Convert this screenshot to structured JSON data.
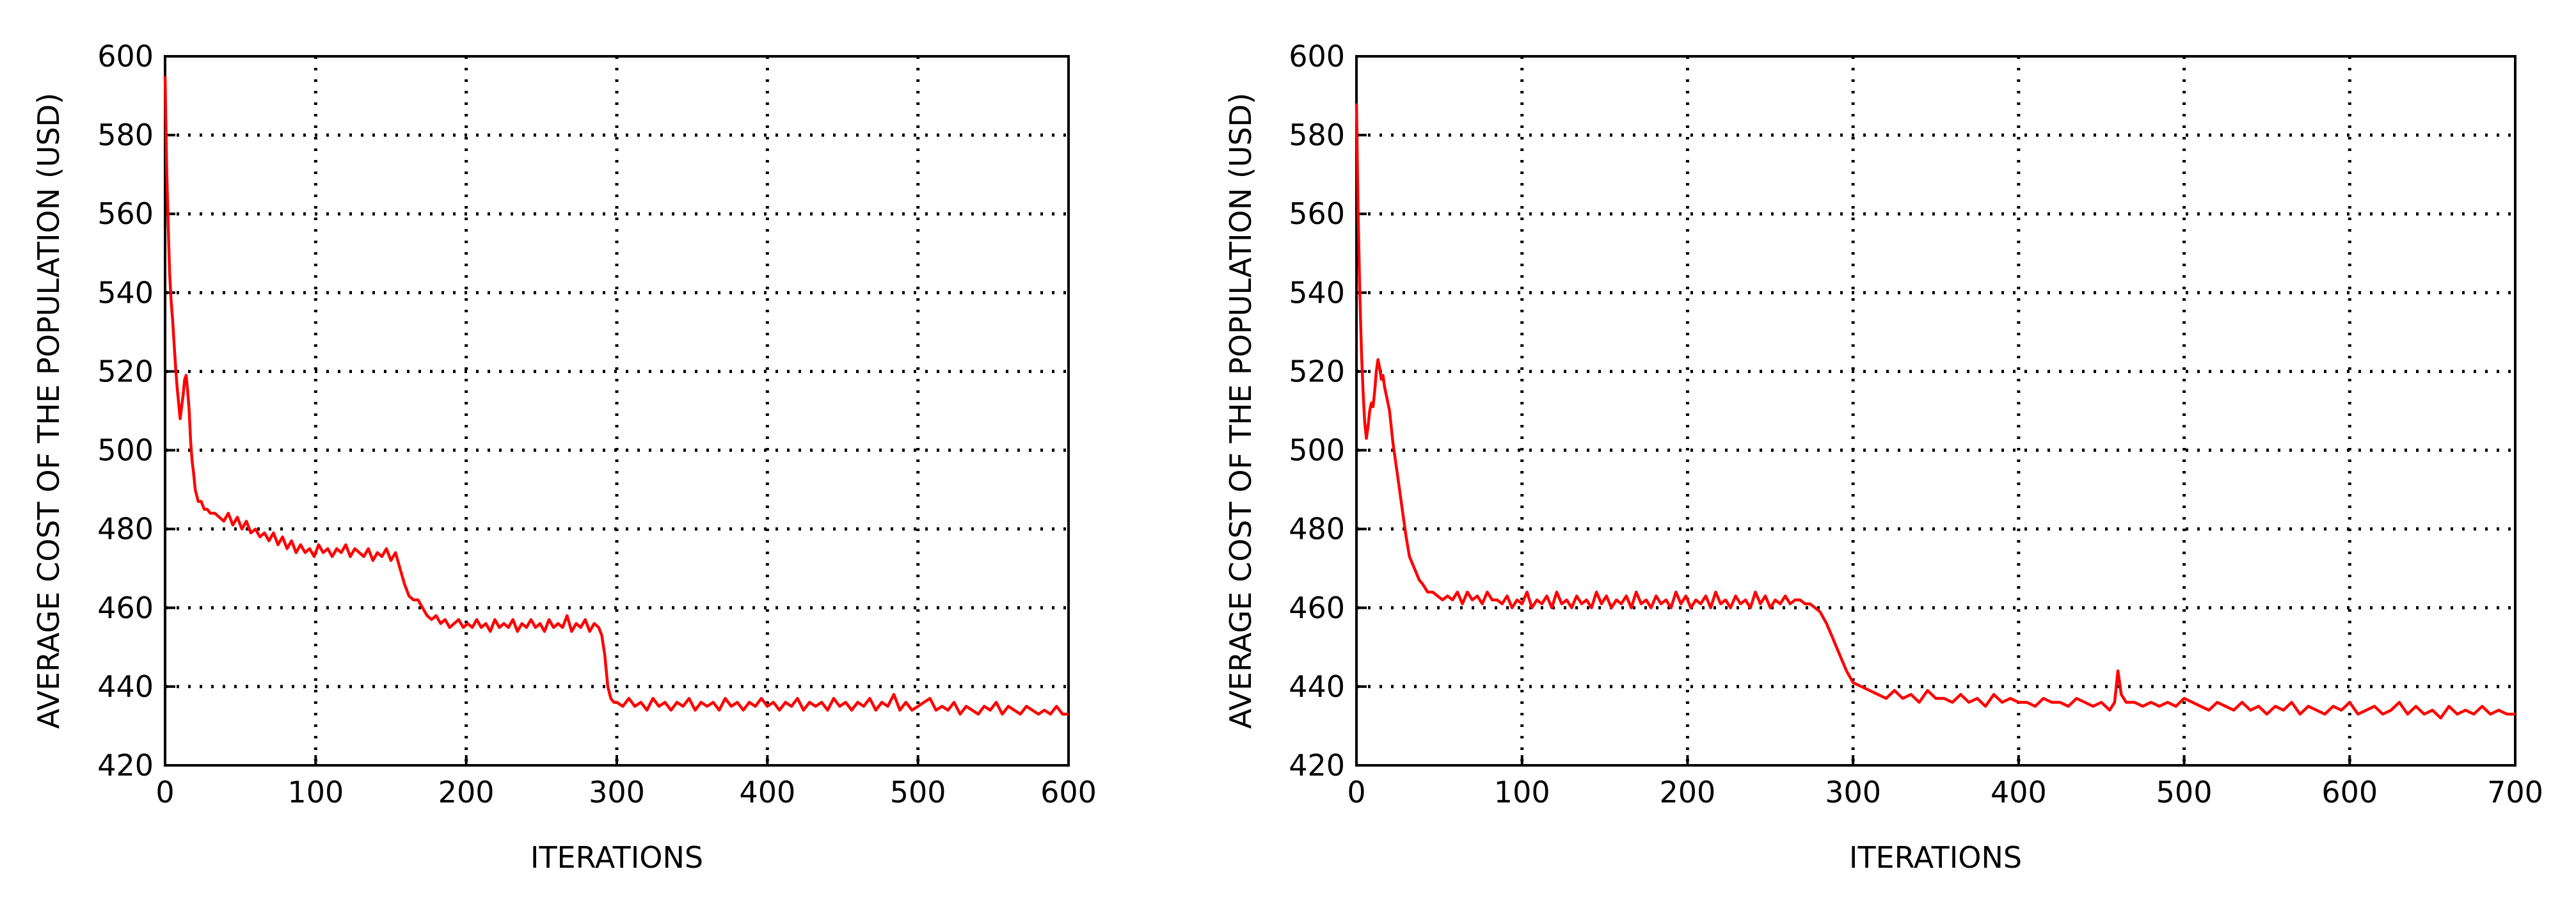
{
  "figure": {
    "background": "#ffffff"
  },
  "chart_data": [
    {
      "type": "line",
      "title": "",
      "xlabel": "ITERATIONS",
      "ylabel": "AVERAGE COST OF THE POPULATION (USD)",
      "xlim": [
        0,
        600
      ],
      "ylim": [
        420,
        600
      ],
      "xticks": [
        0,
        100,
        200,
        300,
        400,
        500,
        600
      ],
      "yticks": [
        420,
        440,
        460,
        480,
        500,
        520,
        540,
        560,
        580,
        600
      ],
      "grid": true,
      "grid_style": "dotted",
      "legend": "none",
      "series": [
        {
          "color": "#ff0000",
          "x": [
            0,
            1,
            2,
            3,
            4,
            5,
            6,
            7,
            8,
            9,
            10,
            11,
            12,
            13,
            14,
            15,
            16,
            17,
            18,
            19,
            20,
            22,
            24,
            26,
            28,
            30,
            33,
            36,
            39,
            42,
            45,
            48,
            51,
            54,
            57,
            60,
            63,
            66,
            69,
            72,
            75,
            78,
            81,
            84,
            87,
            90,
            93,
            96,
            99,
            102,
            105,
            108,
            111,
            114,
            117,
            120,
            123,
            126,
            129,
            132,
            135,
            138,
            141,
            144,
            147,
            150,
            153,
            156,
            159,
            162,
            165,
            168,
            171,
            174,
            177,
            180,
            183,
            186,
            189,
            192,
            195,
            198,
            201,
            204,
            207,
            210,
            213,
            216,
            219,
            222,
            225,
            228,
            231,
            234,
            237,
            240,
            243,
            246,
            249,
            252,
            255,
            258,
            261,
            264,
            267,
            270,
            273,
            276,
            279,
            282,
            285,
            288,
            290,
            292,
            294,
            296,
            298,
            300,
            304,
            308,
            312,
            316,
            320,
            324,
            328,
            332,
            336,
            340,
            344,
            348,
            352,
            356,
            360,
            364,
            368,
            372,
            376,
            380,
            384,
            388,
            392,
            396,
            400,
            404,
            408,
            412,
            416,
            420,
            424,
            428,
            432,
            436,
            440,
            444,
            448,
            452,
            456,
            460,
            464,
            468,
            472,
            476,
            480,
            484,
            488,
            492,
            496,
            500,
            504,
            508,
            512,
            516,
            520,
            524,
            528,
            532,
            536,
            540,
            544,
            548,
            552,
            556,
            560,
            564,
            568,
            572,
            576,
            580,
            584,
            588,
            592,
            596,
            600
          ],
          "y": [
            595,
            572,
            558,
            545,
            538,
            533,
            527,
            521,
            516,
            512,
            508,
            511,
            514,
            518,
            519,
            515,
            510,
            502,
            497,
            494,
            490,
            487,
            487,
            485,
            485,
            484,
            484,
            483,
            482,
            484,
            481,
            483,
            480,
            482,
            479,
            480,
            478,
            479,
            477,
            479,
            476,
            478,
            475,
            477,
            474,
            476,
            474,
            475,
            473,
            476,
            474,
            475,
            473,
            475,
            474,
            476,
            473,
            475,
            474,
            473,
            475,
            472,
            474,
            473,
            475,
            472,
            474,
            470,
            466,
            463,
            462,
            462,
            460,
            458,
            457,
            458,
            456,
            457,
            455,
            456,
            457,
            455,
            456,
            455,
            457,
            455,
            456,
            454,
            457,
            455,
            456,
            455,
            457,
            454,
            456,
            455,
            457,
            455,
            456,
            454,
            457,
            455,
            456,
            455,
            458,
            454,
            456,
            455,
            457,
            454,
            456,
            455,
            453,
            448,
            440,
            437,
            436,
            436,
            435,
            437,
            435,
            436,
            434,
            437,
            435,
            436,
            434,
            436,
            435,
            437,
            434,
            436,
            435,
            436,
            434,
            437,
            435,
            436,
            434,
            436,
            435,
            437,
            435,
            436,
            434,
            436,
            435,
            437,
            434,
            436,
            435,
            436,
            434,
            437,
            435,
            436,
            434,
            436,
            435,
            437,
            434,
            436,
            435,
            438,
            434,
            436,
            434,
            435,
            436,
            437,
            434,
            435,
            434,
            436,
            433,
            435,
            434,
            433,
            435,
            434,
            436,
            433,
            435,
            434,
            433,
            435,
            434,
            433,
            434,
            433,
            435,
            433,
            433
          ]
        }
      ]
    },
    {
      "type": "line",
      "title": "",
      "xlabel": "ITERATIONS",
      "ylabel": "AVERAGE COST OF THE POPULATION (USD)",
      "xlim": [
        0,
        700
      ],
      "ylim": [
        420,
        600
      ],
      "xticks": [
        0,
        100,
        200,
        300,
        400,
        500,
        600,
        700
      ],
      "yticks": [
        420,
        440,
        460,
        480,
        500,
        520,
        540,
        560,
        580,
        600
      ],
      "grid": true,
      "grid_style": "dotted",
      "legend": "none",
      "series": [
        {
          "color": "#ff0000",
          "x": [
            0,
            1,
            2,
            3,
            4,
            5,
            6,
            7,
            8,
            9,
            10,
            11,
            12,
            13,
            14,
            15,
            16,
            17,
            18,
            20,
            22,
            24,
            26,
            28,
            30,
            32,
            34,
            36,
            38,
            40,
            43,
            46,
            49,
            52,
            55,
            58,
            61,
            64,
            67,
            70,
            73,
            76,
            79,
            82,
            85,
            88,
            91,
            94,
            97,
            100,
            103,
            106,
            109,
            112,
            115,
            118,
            121,
            124,
            127,
            130,
            133,
            136,
            139,
            142,
            145,
            148,
            151,
            154,
            157,
            160,
            163,
            166,
            169,
            172,
            175,
            178,
            181,
            184,
            187,
            190,
            193,
            196,
            199,
            202,
            205,
            208,
            211,
            214,
            217,
            220,
            223,
            226,
            229,
            232,
            235,
            238,
            241,
            244,
            247,
            250,
            253,
            256,
            259,
            262,
            265,
            268,
            271,
            274,
            277,
            280,
            284,
            288,
            292,
            296,
            300,
            305,
            310,
            315,
            320,
            325,
            330,
            335,
            340,
            345,
            350,
            355,
            360,
            365,
            370,
            375,
            380,
            385,
            390,
            395,
            400,
            405,
            410,
            415,
            420,
            425,
            430,
            435,
            440,
            445,
            450,
            455,
            458,
            460,
            462,
            465,
            470,
            475,
            480,
            485,
            490,
            495,
            500,
            505,
            510,
            515,
            520,
            525,
            530,
            535,
            540,
            545,
            550,
            555,
            560,
            565,
            570,
            575,
            580,
            585,
            590,
            595,
            600,
            605,
            610,
            615,
            620,
            625,
            630,
            635,
            640,
            645,
            650,
            655,
            660,
            665,
            670,
            675,
            680,
            685,
            690,
            695,
            700
          ],
          "y": [
            588,
            560,
            540,
            525,
            515,
            507,
            503,
            506,
            510,
            512,
            511,
            515,
            520,
            523,
            521,
            518,
            519,
            516,
            514,
            510,
            502,
            496,
            490,
            484,
            478,
            473,
            471,
            469,
            467,
            466,
            464,
            464,
            463,
            462,
            463,
            462,
            464,
            461,
            464,
            462,
            463,
            461,
            464,
            462,
            462,
            461,
            463,
            460,
            462,
            461,
            464,
            460,
            462,
            461,
            463,
            460,
            464,
            461,
            462,
            460,
            463,
            461,
            462,
            460,
            464,
            461,
            463,
            460,
            462,
            461,
            463,
            460,
            464,
            461,
            462,
            460,
            463,
            461,
            462,
            460,
            464,
            461,
            463,
            460,
            462,
            461,
            463,
            460,
            464,
            461,
            462,
            460,
            463,
            461,
            462,
            460,
            464,
            461,
            463,
            460,
            462,
            461,
            463,
            461,
            462,
            462,
            461,
            461,
            460,
            459,
            456,
            452,
            448,
            444,
            441,
            440,
            439,
            438,
            437,
            439,
            437,
            438,
            436,
            439,
            437,
            437,
            436,
            438,
            436,
            437,
            435,
            438,
            436,
            437,
            436,
            436,
            435,
            437,
            436,
            436,
            435,
            437,
            436,
            435,
            436,
            434,
            436,
            444,
            438,
            436,
            436,
            435,
            436,
            435,
            436,
            435,
            437,
            436,
            435,
            434,
            436,
            435,
            434,
            436,
            434,
            435,
            433,
            435,
            434,
            436,
            433,
            435,
            434,
            433,
            435,
            434,
            436,
            433,
            434,
            435,
            433,
            434,
            436,
            433,
            435,
            433,
            434,
            432,
            435,
            433,
            434,
            433,
            435,
            433,
            434,
            433,
            433
          ]
        }
      ]
    }
  ]
}
